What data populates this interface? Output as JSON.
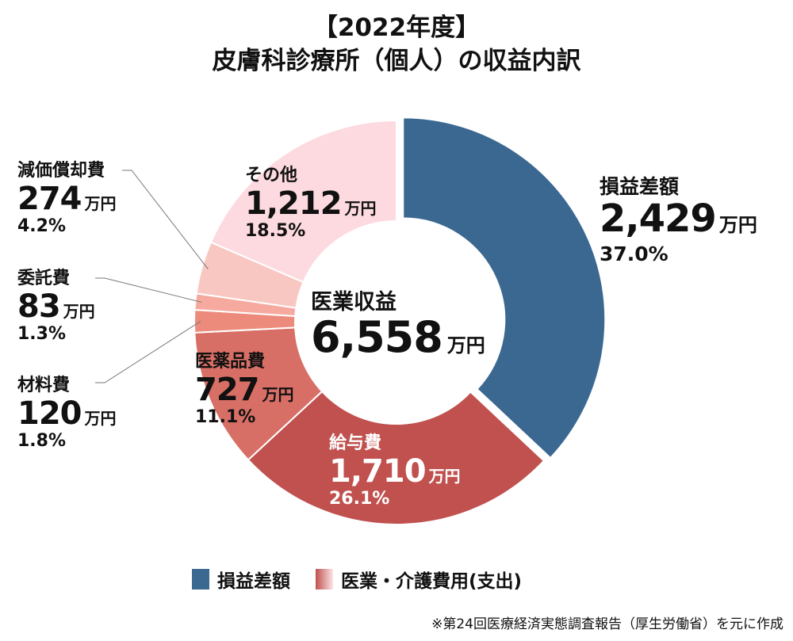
{
  "title": {
    "line1": "【2022年度】",
    "line2": "皮膚科診療所（個人）の収益内訳"
  },
  "center": {
    "label": "医業収益",
    "value": "6,558",
    "unit": "万円"
  },
  "chart_data": {
    "type": "pie",
    "subtype": "donut",
    "title": "【2022年度】皮膚科診療所（個人）の収益内訳",
    "total": 6558,
    "unit": "万円",
    "slices": [
      {
        "name": "損益差額",
        "value": 2429,
        "value_label": "2,429",
        "percent": 37.0,
        "percent_label": "37.0%",
        "color": "#3b6891",
        "exploded": true
      },
      {
        "name": "給与費",
        "value": 1710,
        "value_label": "1,710",
        "percent": 26.1,
        "percent_label": "26.1%",
        "color": "#c0514f"
      },
      {
        "name": "医薬品費",
        "value": 727,
        "value_label": "727",
        "percent": 11.1,
        "percent_label": "11.1%",
        "color": "#d86f66"
      },
      {
        "name": "材料費",
        "value": 120,
        "value_label": "120",
        "percent": 1.8,
        "percent_label": "1.8%",
        "color": "#ec8b7c"
      },
      {
        "name": "委託費",
        "value": 83,
        "value_label": "83",
        "percent": 1.3,
        "percent_label": "1.3%",
        "color": "#f6aa9f"
      },
      {
        "name": "減価償却費",
        "value": 274,
        "value_label": "274",
        "percent": 4.2,
        "percent_label": "4.2%",
        "color": "#f9c7c1"
      },
      {
        "name": "その他",
        "value": 1212,
        "value_label": "1,212",
        "percent": 18.5,
        "percent_label": "18.5%",
        "color": "#fddadf"
      }
    ],
    "legend": [
      {
        "label": "損益差額",
        "color": "#3b6891"
      },
      {
        "label": "医業・介護費用(支出)",
        "color_from": "#c0514f",
        "color_to": "#fde4e6"
      }
    ]
  },
  "source": "※第24回医療経済実態調査報告（厚生労働省）を元に作成"
}
